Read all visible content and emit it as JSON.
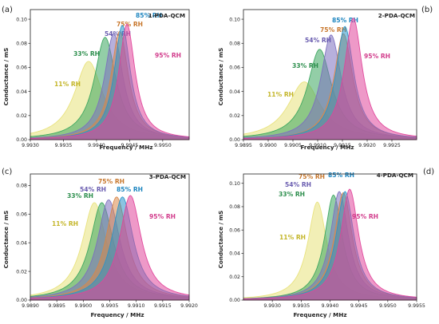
{
  "figure": {
    "panels": [
      {
        "letter": "(a)",
        "title": "1-PDA-QCM",
        "xlabel": "Frequency / MHz",
        "ylabel": "Conductance / mS",
        "xlim": [
          9.993,
          9.9954
        ],
        "ylim": [
          0,
          0.108
        ],
        "xticks": [
          "9.9930",
          "9.9935",
          "9.9940",
          "9.9945",
          "9.9950"
        ],
        "xtick_values": [
          9.993,
          9.9935,
          9.994,
          9.9945,
          9.995
        ],
        "yticks": [
          "0.00",
          "0.02",
          "0.04",
          "0.06",
          "0.08",
          "0.10"
        ],
        "ytick_values": [
          0,
          0.02,
          0.04,
          0.06,
          0.08,
          0.1
        ]
      },
      {
        "letter": "(b)",
        "title": "2-PDA-QCM",
        "xlabel": "Frequency / MHz",
        "ylabel": "Conductance / mS",
        "xlim": [
          9.9895,
          9.993
        ],
        "ylim": [
          0,
          0.108
        ],
        "xticks": [
          "9.9895",
          "9.9900",
          "9.9905",
          "9.9910",
          "9.9915",
          "9.9920",
          "9.9925"
        ],
        "xtick_values": [
          9.9895,
          9.99,
          9.9905,
          9.991,
          9.9915,
          9.992,
          9.9925
        ],
        "yticks": [
          "0.00",
          "0.02",
          "0.04",
          "0.06",
          "0.08",
          "0.10"
        ],
        "ytick_values": [
          0,
          0.02,
          0.04,
          0.06,
          0.08,
          0.1
        ]
      },
      {
        "letter": "(c)",
        "title": "3-PDA-QCM",
        "xlabel": "Frequency / MHz",
        "ylabel": "Conductance / mS",
        "xlim": [
          9.989,
          9.992
        ],
        "ylim": [
          0,
          0.088
        ],
        "xticks": [
          "9.9890",
          "9.9895",
          "9.9900",
          "9.9905",
          "9.9910",
          "9.9915",
          "9.9920"
        ],
        "xtick_values": [
          9.989,
          9.9895,
          9.99,
          9.9905,
          9.991,
          9.9915,
          9.992
        ],
        "yticks": [
          "0.00",
          "0.02",
          "0.04",
          "0.06",
          "0.08"
        ],
        "ytick_values": [
          0,
          0.02,
          0.04,
          0.06,
          0.08
        ]
      },
      {
        "letter": "(d)",
        "title": "4-PDA-QCM",
        "xlabel": "Frequency / MHz",
        "ylabel": "Conductance / mS",
        "xlim": [
          9.9925,
          9.9955
        ],
        "ylim": [
          0,
          0.108
        ],
        "xticks": [
          "9.9930",
          "9.9935",
          "9.9940",
          "9.9945",
          "9.9950",
          "9.9955"
        ],
        "xtick_values": [
          9.993,
          9.9935,
          9.994,
          9.9945,
          9.995,
          9.9955
        ],
        "yticks": [
          "0.00",
          "0.02",
          "0.04",
          "0.06",
          "0.08",
          "0.10"
        ],
        "ytick_values": [
          0,
          0.02,
          0.04,
          0.06,
          0.08,
          0.1
        ]
      }
    ]
  },
  "colors": {
    "11% RH": "#e8e27a",
    "33% RH": "#3aa55e",
    "54% RH": "#7c6fbf",
    "75% RH": "#d8884a",
    "85% RH": "#2a93c9",
    "95% RH": "#e0459a"
  },
  "label_colors": {
    "11% RH": "#c4b62a",
    "33% RH": "#2e8f4e",
    "54% RH": "#6a5db0",
    "75% RH": "#c8782e",
    "85% RH": "#1f86c0",
    "95% RH": "#d23d8c"
  },
  "chart_data": [
    {
      "type": "area",
      "title": "1-PDA-QCM",
      "xlabel": "Frequency / MHz",
      "ylabel": "Conductance / mS",
      "xlim": [
        9.993,
        9.9954
      ],
      "ylim": [
        0,
        0.108
      ],
      "series": [
        {
          "name": "11% RH",
          "peak_x": 9.99388,
          "peak_y": 0.065,
          "width": 0.00026
        },
        {
          "name": "33% RH",
          "peak_x": 9.99413,
          "peak_y": 0.085,
          "width": 0.0002
        },
        {
          "name": "54% RH",
          "peak_x": 9.99426,
          "peak_y": 0.088,
          "width": 0.00017
        },
        {
          "name": "75% RH",
          "peak_x": 9.99435,
          "peak_y": 0.09,
          "width": 0.00016
        },
        {
          "name": "85% RH",
          "peak_x": 9.99439,
          "peak_y": 0.095,
          "width": 0.00015
        },
        {
          "name": "95% RH",
          "peak_x": 9.99446,
          "peak_y": 0.096,
          "width": 0.00015
        }
      ]
    },
    {
      "type": "area",
      "title": "2-PDA-QCM",
      "xlabel": "Frequency / MHz",
      "ylabel": "Conductance / mS",
      "xlim": [
        9.9895,
        9.993
      ],
      "ylim": [
        0,
        0.108
      ],
      "series": [
        {
          "name": "11% RH",
          "peak_x": 9.99073,
          "peak_y": 0.048,
          "width": 0.0004
        },
        {
          "name": "33% RH",
          "peak_x": 9.99104,
          "peak_y": 0.075,
          "width": 0.0003
        },
        {
          "name": "54% RH",
          "peak_x": 9.99127,
          "peak_y": 0.087,
          "width": 0.00025
        },
        {
          "name": "75% RH",
          "peak_x": 9.99152,
          "peak_y": 0.088,
          "width": 0.00023
        },
        {
          "name": "85% RH",
          "peak_x": 9.99155,
          "peak_y": 0.094,
          "width": 0.00022
        },
        {
          "name": "95% RH",
          "peak_x": 9.99172,
          "peak_y": 0.101,
          "width": 0.00022
        }
      ]
    },
    {
      "type": "area",
      "title": "3-PDA-QCM",
      "xlabel": "Frequency / MHz",
      "ylabel": "Conductance / mS",
      "xlim": [
        9.989,
        9.992
      ],
      "ylim": [
        0,
        0.088
      ],
      "series": [
        {
          "name": "11% RH",
          "peak_x": 9.99021,
          "peak_y": 0.068,
          "width": 0.00028
        },
        {
          "name": "33% RH",
          "peak_x": 9.99035,
          "peak_y": 0.068,
          "width": 0.00027
        },
        {
          "name": "54% RH",
          "peak_x": 9.99048,
          "peak_y": 0.07,
          "width": 0.00026
        },
        {
          "name": "75% RH",
          "peak_x": 9.99063,
          "peak_y": 0.072,
          "width": 0.00025
        },
        {
          "name": "85% RH",
          "peak_x": 9.99074,
          "peak_y": 0.072,
          "width": 0.00025
        },
        {
          "name": "95% RH",
          "peak_x": 9.99089,
          "peak_y": 0.073,
          "width": 0.00025
        }
      ]
    },
    {
      "type": "area",
      "title": "4-PDA-QCM",
      "xlabel": "Frequency / MHz",
      "ylabel": "Conductance / mS",
      "xlim": [
        9.9925,
        9.9955
      ],
      "ylim": [
        0,
        0.108
      ],
      "series": [
        {
          "name": "11% RH",
          "peak_x": 9.99378,
          "peak_y": 0.084,
          "width": 0.0002
        },
        {
          "name": "33% RH",
          "peak_x": 9.99406,
          "peak_y": 0.09,
          "width": 0.00019
        },
        {
          "name": "54% RH",
          "peak_x": 9.99416,
          "peak_y": 0.093,
          "width": 0.00019
        },
        {
          "name": "75% RH",
          "peak_x": 9.99423,
          "peak_y": 0.092,
          "width": 0.00019
        },
        {
          "name": "85% RH",
          "peak_x": 9.99426,
          "peak_y": 0.093,
          "width": 0.00019
        },
        {
          "name": "95% RH",
          "peak_x": 9.99434,
          "peak_y": 0.095,
          "width": 0.00019
        }
      ]
    }
  ]
}
